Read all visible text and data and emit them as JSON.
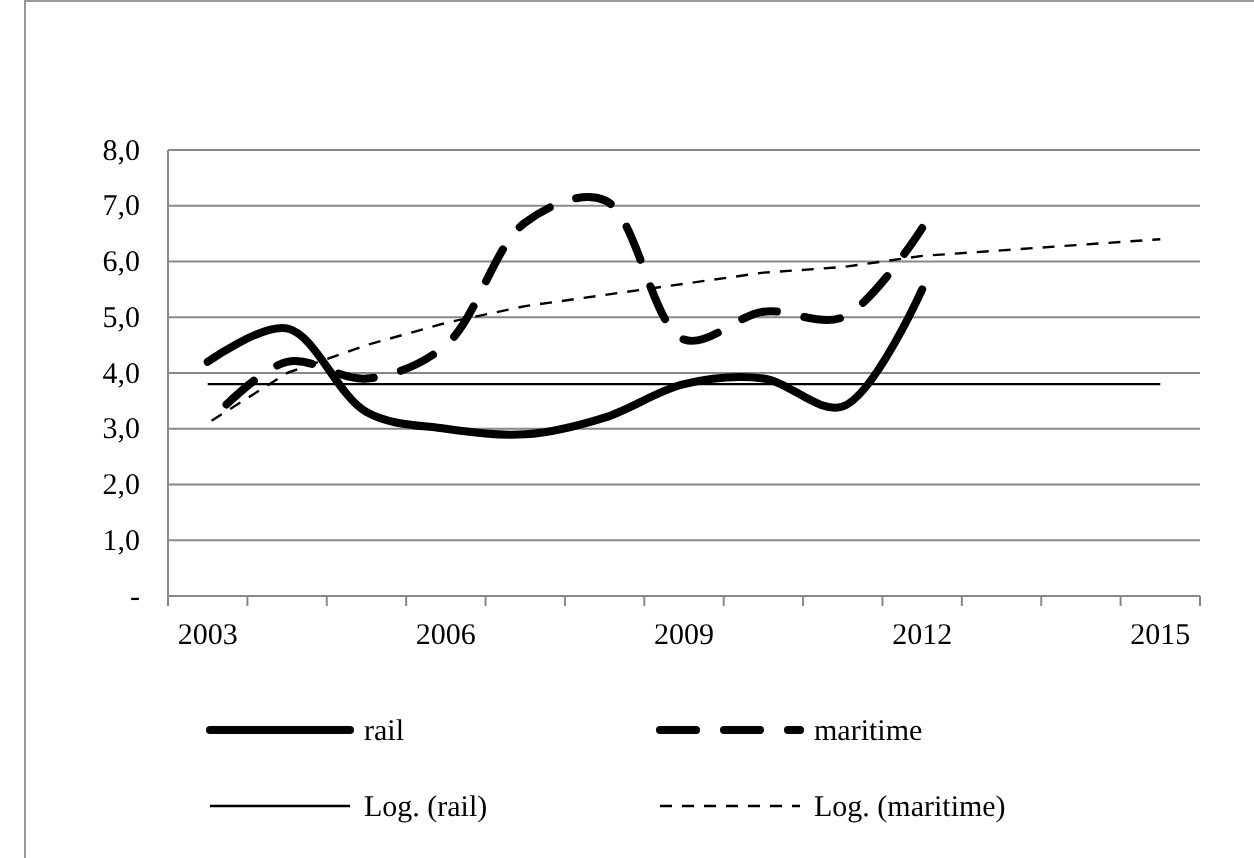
{
  "chart_data": {
    "type": "line",
    "categories": [
      "2003",
      null,
      null,
      "2006",
      null,
      null,
      "2009",
      null,
      null,
      "2012",
      null,
      null,
      "2015"
    ],
    "series": [
      {
        "name": "rail",
        "color": "#000000",
        "line_style": "solid",
        "values": [
          4.2,
          4.8,
          3.3,
          3.0,
          2.9,
          3.2,
          3.8,
          3.9,
          3.4,
          5.5,
          null,
          null,
          null
        ]
      },
      {
        "name": "maritime",
        "color": "#000000",
        "line_style": "dashed",
        "values": [
          3.1,
          4.2,
          3.9,
          4.5,
          6.7,
          7.1,
          4.6,
          5.1,
          5.0,
          6.6,
          null,
          null,
          null
        ]
      },
      {
        "name": "Log. (rail)",
        "type": "line",
        "color": "#000000",
        "line_style": "solid",
        "values": [
          3.8,
          3.8,
          3.8,
          3.8,
          3.8,
          3.8,
          3.8,
          3.8,
          3.8,
          3.8,
          3.8,
          3.8,
          3.8
        ]
      },
      {
        "name": "Log. (maritime)",
        "type": "line",
        "color": "#000000",
        "line_style": "dotted",
        "values": [
          3.1,
          4.0,
          4.5,
          4.9,
          5.2,
          5.4,
          5.6,
          5.8,
          5.9,
          6.1,
          6.2,
          6.3,
          6.4
        ]
      }
    ],
    "ylim": [
      0,
      8
    ],
    "yticks": [
      {
        "value": 0,
        "label": "-"
      },
      {
        "value": 1,
        "label": "1,0"
      },
      {
        "value": 2,
        "label": "2,0"
      },
      {
        "value": 3,
        "label": "3,0"
      },
      {
        "value": 4,
        "label": "4,0"
      },
      {
        "value": 5,
        "label": "5,0"
      },
      {
        "value": 6,
        "label": "6,0"
      },
      {
        "value": 7,
        "label": "7,0"
      },
      {
        "value": 8,
        "label": "8,0"
      }
    ],
    "grid": "y",
    "legend": "bottom"
  }
}
